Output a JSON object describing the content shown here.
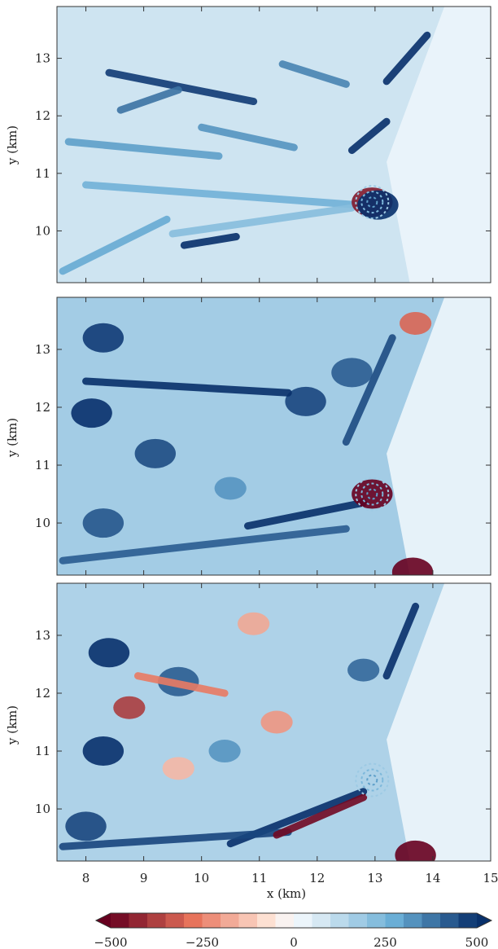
{
  "chart_data": [
    {
      "type": "heatmap",
      "panel": "top",
      "ylabel": "y (km)",
      "xlim": [
        7.5,
        15
      ],
      "ylim": [
        9.1,
        13.9
      ],
      "yticks": [
        10,
        11,
        12,
        13
      ],
      "xticks": [
        8,
        9,
        10,
        11,
        12,
        13,
        14
      ],
      "features": [
        {
          "kind": "streak",
          "x1": 8.4,
          "y1": 12.75,
          "x2": 10.9,
          "y2": 12.25,
          "value": 480
        },
        {
          "kind": "streak",
          "x1": 7.7,
          "y1": 11.55,
          "x2": 10.3,
          "y2": 11.3,
          "value": 300
        },
        {
          "kind": "streak",
          "x1": 10.0,
          "y1": 11.8,
          "x2": 11.6,
          "y2": 11.45,
          "value": 320
        },
        {
          "kind": "streak",
          "x1": 8.0,
          "y1": 10.8,
          "x2": 12.7,
          "y2": 10.45,
          "value": 260
        },
        {
          "kind": "streak",
          "x1": 9.5,
          "y1": 9.95,
          "x2": 12.6,
          "y2": 10.4,
          "value": 220
        },
        {
          "kind": "streak",
          "x1": 9.7,
          "y1": 9.75,
          "x2": 10.6,
          "y2": 9.9,
          "value": 500
        },
        {
          "kind": "streak",
          "x1": 8.6,
          "y1": 12.1,
          "x2": 9.6,
          "y2": 12.45,
          "value": 380
        },
        {
          "kind": "streak",
          "x1": 11.4,
          "y1": 12.9,
          "x2": 12.5,
          "y2": 12.55,
          "value": 350
        },
        {
          "kind": "streak",
          "x1": 12.6,
          "y1": 11.4,
          "x2": 13.2,
          "y2": 11.9,
          "value": 500
        },
        {
          "kind": "streak",
          "x1": 13.2,
          "y1": 12.6,
          "x2": 13.9,
          "y2": 13.4,
          "value": 500
        },
        {
          "kind": "streak",
          "x1": 7.6,
          "y1": 9.3,
          "x2": 9.4,
          "y2": 10.2,
          "value": 280
        },
        {
          "kind": "blob",
          "x": 12.95,
          "y": 10.5,
          "value": -450
        },
        {
          "kind": "blob",
          "x": 13.05,
          "y": 10.45,
          "value": 500
        }
      ]
    },
    {
      "type": "heatmap",
      "panel": "middle",
      "ylabel": "y (km)",
      "xlim": [
        7.5,
        15
      ],
      "ylim": [
        9.1,
        13.9
      ],
      "yticks": [
        10,
        11,
        12,
        13
      ],
      "xticks": [
        8,
        9,
        10,
        11,
        12,
        13,
        14
      ],
      "features": [
        {
          "kind": "blob",
          "x": 8.3,
          "y": 13.2,
          "value": 480
        },
        {
          "kind": "blob",
          "x": 8.1,
          "y": 11.9,
          "value": 500
        },
        {
          "kind": "blob",
          "x": 9.2,
          "y": 11.2,
          "value": 450
        },
        {
          "kind": "blob",
          "x": 8.3,
          "y": 10.0,
          "value": 430
        },
        {
          "kind": "blob",
          "x": 11.8,
          "y": 12.1,
          "value": 460
        },
        {
          "kind": "blob",
          "x": 12.6,
          "y": 12.6,
          "value": 420
        },
        {
          "kind": "blob",
          "x": 10.5,
          "y": 10.6,
          "value": 320
        },
        {
          "kind": "streak",
          "x1": 8.0,
          "y1": 12.45,
          "x2": 11.5,
          "y2": 12.25,
          "value": 500
        },
        {
          "kind": "streak",
          "x1": 10.8,
          "y1": 9.95,
          "x2": 12.8,
          "y2": 10.35,
          "value": 500
        },
        {
          "kind": "streak",
          "x1": 7.6,
          "y1": 9.35,
          "x2": 12.5,
          "y2": 9.9,
          "value": 420
        },
        {
          "kind": "streak",
          "x1": 12.5,
          "y1": 11.4,
          "x2": 13.3,
          "y2": 13.2,
          "value": 450
        },
        {
          "kind": "blob",
          "x": 12.95,
          "y": 10.5,
          "value": -500
        },
        {
          "kind": "blob",
          "x": 13.65,
          "y": 9.15,
          "value": -500
        },
        {
          "kind": "blob",
          "x": 13.7,
          "y": 13.45,
          "value": -300
        }
      ]
    },
    {
      "type": "heatmap",
      "panel": "bottom",
      "xlabel": "x (km)",
      "ylabel": "y (km)",
      "xlim": [
        7.5,
        15
      ],
      "ylim": [
        9.1,
        13.9
      ],
      "yticks": [
        10,
        11,
        12,
        13
      ],
      "xticks": [
        8,
        9,
        10,
        11,
        12,
        13,
        14,
        15
      ],
      "features": [
        {
          "kind": "blob",
          "x": 8.4,
          "y": 12.7,
          "value": 500
        },
        {
          "kind": "blob",
          "x": 8.3,
          "y": 11.0,
          "value": 500
        },
        {
          "kind": "blob",
          "x": 8.0,
          "y": 9.7,
          "value": 460
        },
        {
          "kind": "blob",
          "x": 9.6,
          "y": 12.2,
          "value": 420
        },
        {
          "kind": "blob",
          "x": 10.4,
          "y": 11.0,
          "value": 320
        },
        {
          "kind": "blob",
          "x": 12.8,
          "y": 12.4,
          "value": 400
        },
        {
          "kind": "streak",
          "x1": 13.2,
          "y1": 12.3,
          "x2": 13.7,
          "y2": 13.5,
          "value": 500
        },
        {
          "kind": "streak",
          "x1": 10.5,
          "y1": 9.4,
          "x2": 12.8,
          "y2": 10.3,
          "value": 500
        },
        {
          "kind": "streak",
          "x1": 7.6,
          "y1": 9.35,
          "x2": 11.5,
          "y2": 9.6,
          "value": 460
        },
        {
          "kind": "streak",
          "x1": 11.3,
          "y1": 9.55,
          "x2": 12.8,
          "y2": 10.2,
          "value": -480
        },
        {
          "kind": "streak",
          "x1": 8.9,
          "y1": 12.3,
          "x2": 10.4,
          "y2": 12.0,
          "value": -260
        },
        {
          "kind": "blob",
          "x": 8.75,
          "y": 11.75,
          "value": -380
        },
        {
          "kind": "blob",
          "x": 10.9,
          "y": 13.2,
          "value": -180
        },
        {
          "kind": "blob",
          "x": 9.6,
          "y": 10.7,
          "value": -150
        },
        {
          "kind": "blob",
          "x": 11.3,
          "y": 11.5,
          "value": -210
        },
        {
          "kind": "blob",
          "x": 13.7,
          "y": 9.2,
          "value": -500
        }
      ]
    }
  ],
  "colorbar": {
    "ticks": [
      "−500",
      "−250",
      "0",
      "250",
      "500"
    ],
    "tick_values": [
      -500,
      -250,
      0,
      250,
      500
    ],
    "range": [
      -500,
      500
    ],
    "levels": 20,
    "extend": "both",
    "colors": {
      "neg_strong": "#67001f",
      "neg_mid": "#e7735b",
      "neg_weak": "#fde0d2",
      "neutral": "#f7fbff",
      "pos_weak": "#d6e8f3",
      "pos_mid": "#6aaed6",
      "pos_strong": "#08306b"
    }
  }
}
